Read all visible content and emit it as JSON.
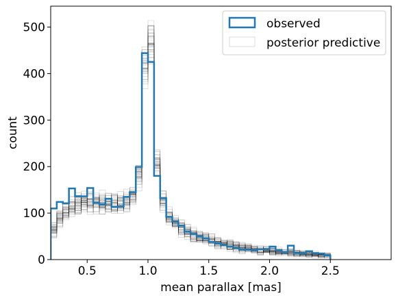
{
  "chart_data": {
    "type": "histogram",
    "xlabel": "mean parallax [mas]",
    "ylabel": "count",
    "xlim": [
      0.2,
      3.0
    ],
    "ylim": [
      0,
      545
    ],
    "xticks": [
      0.5,
      1.0,
      1.5,
      2.0,
      2.5
    ],
    "xtick_labels": [
      "0.5",
      "1.0",
      "1.5",
      "2.0",
      "2.5"
    ],
    "yticks": [
      0,
      100,
      200,
      300,
      400,
      500
    ],
    "ytick_labels": [
      "0",
      "100",
      "200",
      "300",
      "400",
      "500"
    ],
    "bin_width": 0.05,
    "bin_start": 0.2,
    "legend_position": "top-right",
    "series": [
      {
        "name": "observed",
        "style": "step",
        "color": "#1f77b4",
        "values": [
          110,
          124,
          121,
          153,
          136,
          136,
          154,
          122,
          118,
          131,
          113,
          114,
          135,
          145,
          199,
          444,
          425,
          180,
          132,
          92,
          82,
          73,
          60,
          55,
          50,
          46,
          38,
          35,
          31,
          28,
          25,
          22,
          21,
          20,
          22,
          22,
          28,
          20,
          16,
          30,
          14,
          13,
          18,
          14,
          13,
          9
        ]
      },
      {
        "name": "posterior predictive",
        "style": "step-ensemble",
        "color": "#000000",
        "values": [
          62,
          88,
          105,
          113,
          120,
          124,
          124,
          123,
          121,
          120,
          119,
          121,
          125,
          135,
          180,
          418,
          470,
          208,
          128,
          93,
          78,
          68,
          58,
          52,
          48,
          44,
          40,
          37,
          34,
          31,
          28,
          26,
          24,
          22,
          20,
          19,
          18,
          17,
          16,
          15,
          14,
          13,
          12,
          11,
          10,
          9
        ]
      }
    ]
  }
}
